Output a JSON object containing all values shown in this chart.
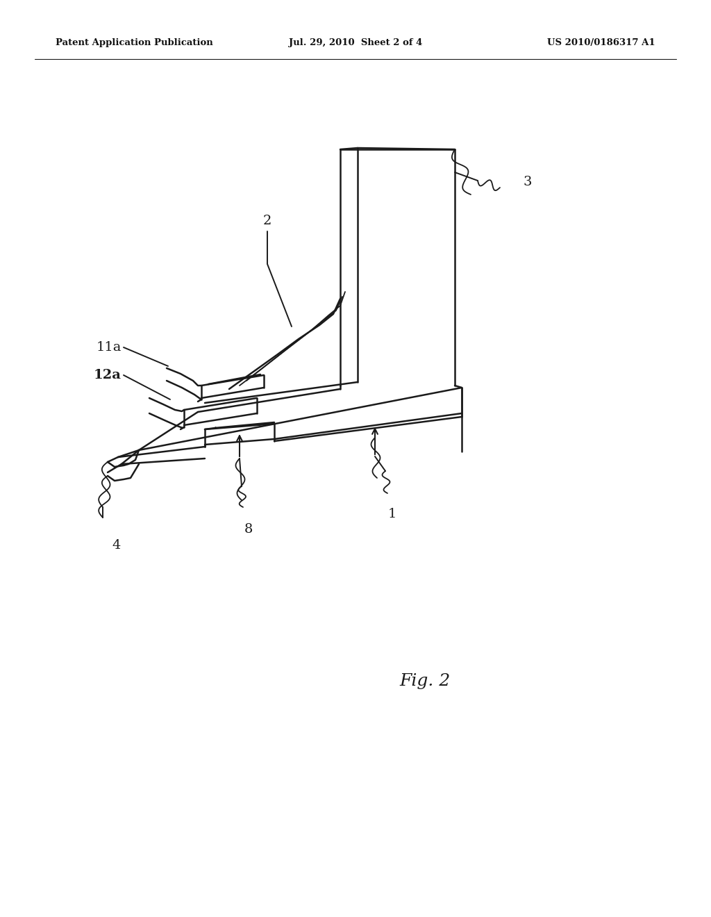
{
  "background_color": "#ffffff",
  "line_color": "#1a1a1a",
  "lw_main": 1.8,
  "lw_thin": 1.3,
  "header_left": "Patent Application Publication",
  "header_center": "Jul. 29, 2010  Sheet 2 of 4",
  "header_right": "US 2010/0186317 A1",
  "fig_label": "Fig. 2",
  "label_fontsize": 14,
  "header_fontsize": 9.5
}
